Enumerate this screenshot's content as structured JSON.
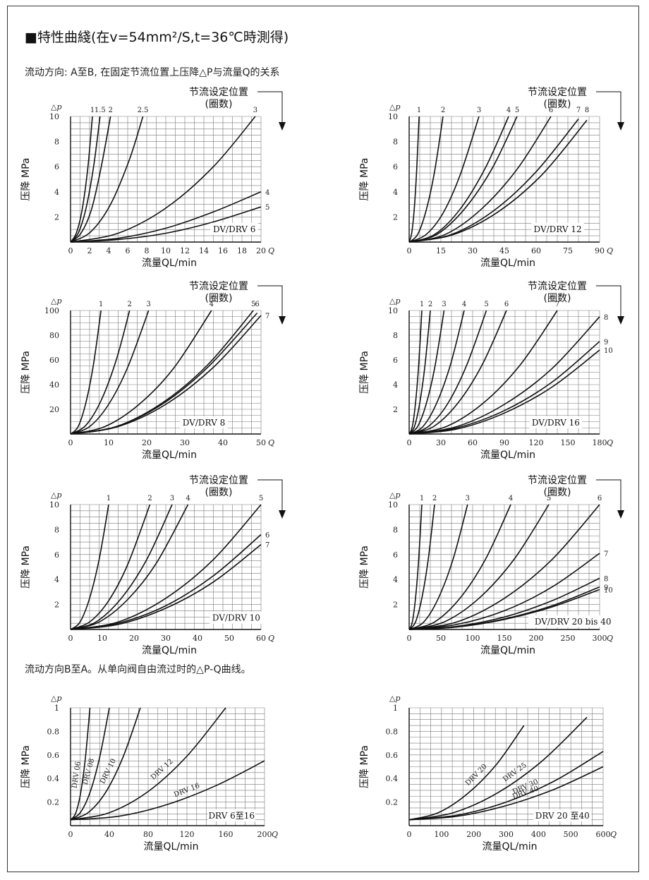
{
  "page": {
    "title": "■特性曲綫(在v=54mm²/S,t=36℃時測得)",
    "subtitle_ab": "流动方向: A至B, 在固定节流位置上压降△P与流量Q的关系",
    "subtitle_ba": "流动方向B至A。从单向阀自由流过时的△P-Q曲线。"
  },
  "chart_data": [
    {
      "type": "line",
      "model_label": "DV/DRV 6",
      "xlabel": "流量QL/min",
      "ylabel": "压降 MPa",
      "y_axis_symbol": "△p",
      "x_axis_symbol": "Q",
      "setting_label_1": "节流设定位置",
      "setting_label_2": "(圈数)",
      "xlim": [
        0,
        20
      ],
      "ylim": [
        0,
        10
      ],
      "xticks": [
        0,
        2,
        4,
        6,
        8,
        10,
        12,
        14,
        16,
        18,
        20
      ],
      "yticks": [
        2,
        4,
        6,
        8,
        10
      ],
      "series": [
        {
          "name": "1",
          "x": [
            0,
            0.6,
            1.2,
            1.8,
            2.3
          ],
          "y": [
            0,
            0.7,
            2.5,
            5.8,
            10
          ]
        },
        {
          "name": "1.5",
          "x": [
            0,
            0.8,
            1.6,
            2.4,
            3.1
          ],
          "y": [
            0,
            0.7,
            2.6,
            5.9,
            10
          ]
        },
        {
          "name": "2",
          "x": [
            0,
            1.1,
            2.2,
            3.2,
            4.2
          ],
          "y": [
            0,
            0.7,
            2.6,
            5.9,
            10
          ]
        },
        {
          "name": "2.5",
          "x": [
            0,
            2.1,
            4.2,
            6.2,
            7.6
          ],
          "y": [
            0,
            0.8,
            3.0,
            6.6,
            10
          ]
        },
        {
          "name": "3",
          "x": [
            0,
            5,
            10,
            15,
            19.4
          ],
          "y": [
            0,
            0.7,
            2.7,
            6.0,
            10
          ]
        },
        {
          "name": "4",
          "x": [
            0,
            5,
            10,
            15,
            20
          ],
          "y": [
            0,
            0.3,
            1.1,
            2.4,
            4.0
          ]
        },
        {
          "name": "5",
          "x": [
            0,
            5,
            10,
            15,
            20
          ],
          "y": [
            0,
            0.2,
            0.7,
            1.6,
            2.8
          ]
        }
      ]
    },
    {
      "type": "line",
      "model_label": "DV/DRV 12",
      "xlabel": "流量QL/min",
      "ylabel": "压降 MPa",
      "y_axis_symbol": "△p",
      "x_axis_symbol": "Q",
      "setting_label_1": "节流设定位置",
      "setting_label_2": "(圈数)",
      "xlim": [
        0,
        90
      ],
      "ylim": [
        0,
        10
      ],
      "xticks": [
        0,
        15,
        30,
        45,
        60,
        75,
        90
      ],
      "yticks": [
        2,
        4,
        6,
        8,
        10
      ],
      "series": [
        {
          "name": "1",
          "x": [
            0,
            1.2,
            2.4,
            3.6,
            4.7
          ],
          "y": [
            0,
            0.7,
            2.6,
            5.9,
            10
          ]
        },
        {
          "name": "2",
          "x": [
            0,
            4,
            8,
            12,
            16
          ],
          "y": [
            0,
            0.6,
            2.5,
            5.6,
            10
          ]
        },
        {
          "name": "3",
          "x": [
            0,
            8,
            16,
            24,
            33
          ],
          "y": [
            0,
            0.6,
            2.3,
            5.3,
            10
          ]
        },
        {
          "name": "4",
          "x": [
            0,
            12,
            24,
            36,
            47
          ],
          "y": [
            0,
            0.6,
            2.6,
            5.9,
            10
          ]
        },
        {
          "name": "5",
          "x": [
            0,
            13,
            26,
            39,
            51
          ],
          "y": [
            0,
            0.6,
            2.6,
            5.8,
            10
          ]
        },
        {
          "name": "6",
          "x": [
            0,
            17,
            34,
            51,
            67
          ],
          "y": [
            0,
            0.6,
            2.6,
            5.8,
            10
          ]
        },
        {
          "name": "7",
          "x": [
            0,
            20,
            40,
            60,
            80
          ],
          "y": [
            0,
            0.6,
            2.5,
            5.6,
            9.8
          ]
        },
        {
          "name": "8",
          "x": [
            0,
            21,
            42,
            63,
            84
          ],
          "y": [
            0,
            0.6,
            2.4,
            5.4,
            9.7
          ]
        }
      ]
    },
    {
      "type": "line",
      "model_label": "DV/DRV 8",
      "xlabel": "流量QL/min",
      "ylabel": "压降 MPa",
      "y_axis_symbol": "△p",
      "x_axis_symbol": "Q",
      "setting_label_1": "节流设定位置",
      "setting_label_2": "(圈数)",
      "xlim": [
        0,
        50
      ],
      "ylim": [
        0,
        100
      ],
      "xticks": [
        0,
        10,
        20,
        30,
        40,
        50
      ],
      "yticks": [
        20,
        40,
        60,
        80,
        100
      ],
      "series": [
        {
          "name": "1",
          "x": [
            0,
            2,
            4,
            6,
            8
          ],
          "y": [
            0,
            6,
            25,
            56,
            100
          ]
        },
        {
          "name": "2",
          "x": [
            0,
            4,
            8,
            12,
            15.5
          ],
          "y": [
            0,
            7,
            27,
            60,
            100
          ]
        },
        {
          "name": "3",
          "x": [
            0,
            5,
            10,
            15,
            20.5
          ],
          "y": [
            0,
            6,
            24,
            54,
            100
          ]
        },
        {
          "name": "4",
          "x": [
            0,
            9,
            18,
            27,
            37
          ],
          "y": [
            0,
            6,
            24,
            53,
            100
          ]
        },
        {
          "name": "5",
          "x": [
            0,
            12,
            24,
            36,
            48
          ],
          "y": [
            0,
            6,
            25,
            56,
            100
          ]
        },
        {
          "name": "6",
          "x": [
            0,
            12,
            24,
            36,
            49
          ],
          "y": [
            0,
            6,
            24,
            54,
            98
          ]
        },
        {
          "name": "7",
          "x": [
            0,
            12.5,
            25,
            37.5,
            50
          ],
          "y": [
            0,
            6,
            24,
            54,
            96
          ]
        }
      ]
    },
    {
      "type": "line",
      "model_label": "DV/DRV 16",
      "xlabel": "流量QL/min",
      "ylabel": "压降 MPa",
      "y_axis_symbol": "△p",
      "x_axis_symbol": "Q",
      "setting_label_1": "节流设定位置",
      "setting_label_2": "(圈数)",
      "xlim": [
        0,
        180
      ],
      "ylim": [
        0,
        10
      ],
      "xticks": [
        0,
        30,
        60,
        90,
        120,
        150,
        180
      ],
      "yticks": [
        2,
        4,
        6,
        8,
        10
      ],
      "series": [
        {
          "name": "1",
          "x": [
            0,
            3,
            6,
            9,
            12
          ],
          "y": [
            0,
            0.6,
            2.5,
            5.6,
            10
          ]
        },
        {
          "name": "2",
          "x": [
            0,
            5,
            10,
            15,
            20
          ],
          "y": [
            0,
            0.6,
            2.5,
            5.6,
            10
          ]
        },
        {
          "name": "3",
          "x": [
            0,
            8,
            16,
            24,
            33
          ],
          "y": [
            0,
            0.6,
            2.4,
            5.3,
            10
          ]
        },
        {
          "name": "4",
          "x": [
            0,
            13,
            26,
            39,
            52
          ],
          "y": [
            0,
            0.6,
            2.5,
            5.6,
            10
          ]
        },
        {
          "name": "5",
          "x": [
            0,
            18,
            36,
            54,
            73
          ],
          "y": [
            0,
            0.6,
            2.4,
            5.5,
            10
          ]
        },
        {
          "name": "6",
          "x": [
            0,
            23,
            46,
            69,
            92
          ],
          "y": [
            0,
            0.6,
            2.5,
            5.6,
            10
          ]
        },
        {
          "name": "7",
          "x": [
            0,
            35,
            70,
            105,
            140
          ],
          "y": [
            0,
            0.6,
            2.5,
            5.6,
            10
          ]
        },
        {
          "name": "8",
          "x": [
            0,
            45,
            90,
            135,
            180
          ],
          "y": [
            0,
            0.6,
            2.4,
            5.3,
            9.5
          ]
        },
        {
          "name": "9",
          "x": [
            0,
            45,
            90,
            135,
            180
          ],
          "y": [
            0,
            0.5,
            1.9,
            4.2,
            7.5
          ]
        },
        {
          "name": "10",
          "x": [
            0,
            45,
            90,
            135,
            180
          ],
          "y": [
            0,
            0.4,
            1.7,
            3.8,
            6.8
          ]
        }
      ]
    },
    {
      "type": "line",
      "model_label": "DV/DRV 10",
      "xlabel": "流量QL/min",
      "ylabel": "压降 MPa",
      "y_axis_symbol": "△p",
      "x_axis_symbol": "Q",
      "setting_label_1": "节流设定位置",
      "setting_label_2": "(圈数)",
      "xlim": [
        0,
        60
      ],
      "ylim": [
        0,
        10
      ],
      "xticks": [
        0,
        10,
        20,
        30,
        40,
        50,
        60
      ],
      "yticks": [
        2,
        4,
        6,
        8,
        10
      ],
      "series": [
        {
          "name": "1",
          "x": [
            0,
            3,
            6,
            9,
            12
          ],
          "y": [
            0,
            0.6,
            2.5,
            5.6,
            10
          ]
        },
        {
          "name": "2",
          "x": [
            0,
            6,
            12,
            18,
            25
          ],
          "y": [
            0,
            0.6,
            2.3,
            5.2,
            10
          ]
        },
        {
          "name": "3",
          "x": [
            0,
            8,
            16,
            24,
            32
          ],
          "y": [
            0,
            0.6,
            2.5,
            5.6,
            10
          ]
        },
        {
          "name": "4",
          "x": [
            0,
            9,
            18,
            27,
            37
          ],
          "y": [
            0,
            0.6,
            2.4,
            5.3,
            10
          ]
        },
        {
          "name": "5",
          "x": [
            0,
            15,
            30,
            45,
            60
          ],
          "y": [
            0,
            0.6,
            2.5,
            5.6,
            10
          ]
        },
        {
          "name": "6",
          "x": [
            0,
            15,
            30,
            45,
            60
          ],
          "y": [
            0,
            0.5,
            1.9,
            4.3,
            7.6
          ]
        },
        {
          "name": "7",
          "x": [
            0,
            15,
            30,
            45,
            60
          ],
          "y": [
            0,
            0.4,
            1.7,
            3.8,
            6.8
          ]
        }
      ]
    },
    {
      "type": "line",
      "model_label": "DV/DRV 20 bis 40",
      "xlabel": "流量QL/min",
      "ylabel": "压降 MPa",
      "y_axis_symbol": "△p",
      "x_axis_symbol": "Q",
      "setting_label_1": "节流设定位置",
      "setting_label_2": "(圈数)",
      "xlim": [
        0,
        300
      ],
      "ylim": [
        0,
        10
      ],
      "xticks": [
        0,
        50,
        100,
        150,
        200,
        250,
        300
      ],
      "yticks": [
        2,
        4,
        6,
        8,
        10
      ],
      "series": [
        {
          "name": "1",
          "x": [
            0,
            5,
            10,
            15,
            20
          ],
          "y": [
            0,
            0.6,
            2.5,
            5.6,
            10
          ]
        },
        {
          "name": "2",
          "x": [
            0,
            10,
            20,
            30,
            40
          ],
          "y": [
            0,
            0.6,
            2.5,
            5.6,
            10
          ]
        },
        {
          "name": "3",
          "x": [
            0,
            23,
            46,
            69,
            92
          ],
          "y": [
            0,
            0.6,
            2.5,
            5.6,
            10
          ]
        },
        {
          "name": "4",
          "x": [
            0,
            40,
            80,
            120,
            160
          ],
          "y": [
            0,
            0.6,
            2.5,
            5.6,
            10
          ]
        },
        {
          "name": "5",
          "x": [
            0,
            55,
            110,
            165,
            220
          ],
          "y": [
            0,
            0.6,
            2.5,
            5.6,
            10
          ]
        },
        {
          "name": "6",
          "x": [
            0,
            75,
            150,
            225,
            300
          ],
          "y": [
            0,
            0.6,
            2.5,
            5.6,
            10
          ]
        },
        {
          "name": "7",
          "x": [
            0,
            75,
            150,
            225,
            300
          ],
          "y": [
            0,
            0.4,
            1.5,
            3.4,
            6.1
          ]
        },
        {
          "name": "8",
          "x": [
            0,
            75,
            150,
            225,
            300
          ],
          "y": [
            0,
            0.25,
            1.0,
            2.3,
            4.1
          ]
        },
        {
          "name": "9",
          "x": [
            0,
            75,
            150,
            225,
            300
          ],
          "y": [
            0,
            0.2,
            0.85,
            1.9,
            3.4
          ]
        },
        {
          "name": "10",
          "x": [
            0,
            75,
            150,
            225,
            300
          ],
          "y": [
            0,
            0.2,
            0.8,
            1.8,
            3.2
          ]
        }
      ]
    },
    {
      "type": "line",
      "model_label": "DRV 6至16",
      "xlabel": "流量QL/min",
      "ylabel": "压降 MPa",
      "y_axis_symbol": "△p",
      "x_axis_symbol": "Q",
      "xlim": [
        0,
        200
      ],
      "ylim": [
        0,
        1
      ],
      "xticks": [
        0,
        40,
        80,
        120,
        160,
        200
      ],
      "yticks": [
        0.2,
        0.4,
        0.6,
        0.8,
        1
      ],
      "series": [
        {
          "name": "DRV 06",
          "x": [
            0,
            5,
            10,
            15,
            20
          ],
          "y": [
            0.05,
            0.1,
            0.26,
            0.55,
            1.0
          ]
        },
        {
          "name": "DRV 08",
          "x": [
            0,
            10,
            20,
            30,
            40
          ],
          "y": [
            0.05,
            0.11,
            0.28,
            0.58,
            1.0
          ]
        },
        {
          "name": "DRV 10",
          "x": [
            0,
            18,
            36,
            54,
            72
          ],
          "y": [
            0.05,
            0.11,
            0.28,
            0.58,
            1.0
          ]
        },
        {
          "name": "DRV 12",
          "x": [
            0,
            40,
            80,
            120,
            160
          ],
          "y": [
            0.05,
            0.11,
            0.29,
            0.59,
            1.0
          ]
        },
        {
          "name": "DRV 16",
          "x": [
            0,
            50,
            100,
            150,
            200
          ],
          "y": [
            0.05,
            0.08,
            0.18,
            0.34,
            0.55
          ]
        }
      ]
    },
    {
      "type": "line",
      "model_label": "DRV 20 至40",
      "xlabel": "流量QL/min",
      "ylabel": "压降 MPa",
      "y_axis_symbol": "△p",
      "x_axis_symbol": "Q",
      "xlim": [
        0,
        600
      ],
      "ylim": [
        0,
        1
      ],
      "xticks": [
        0,
        100,
        200,
        300,
        400,
        500,
        600
      ],
      "yticks": [
        0.2,
        0.4,
        0.6,
        0.8,
        1
      ],
      "series": [
        {
          "name": "DRV 20",
          "x": [
            0,
            90,
            180,
            270,
            355
          ],
          "y": [
            0.05,
            0.11,
            0.27,
            0.52,
            0.85
          ]
        },
        {
          "name": "DRV 25",
          "x": [
            0,
            137,
            275,
            412,
            550
          ],
          "y": [
            0.05,
            0.11,
            0.28,
            0.55,
            0.92
          ]
        },
        {
          "name": "DRV 30",
          "x": [
            0,
            150,
            300,
            450,
            600
          ],
          "y": [
            0.05,
            0.09,
            0.2,
            0.38,
            0.63
          ]
        },
        {
          "name": "DRV 40",
          "x": [
            0,
            150,
            300,
            450,
            600
          ],
          "y": [
            0.05,
            0.08,
            0.17,
            0.31,
            0.5
          ]
        }
      ]
    }
  ]
}
